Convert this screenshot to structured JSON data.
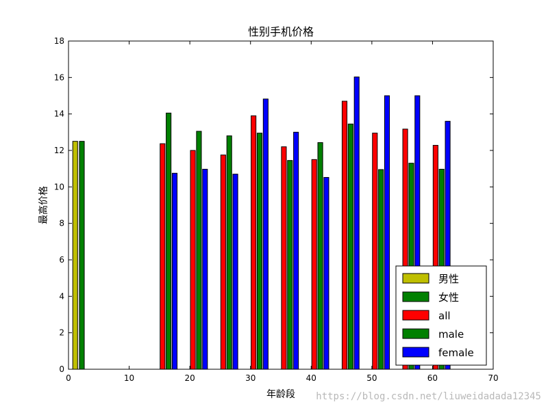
{
  "chart_data": {
    "type": "bar",
    "title": "性别手机价格",
    "xlabel": "年龄段",
    "ylabel": "最高价格",
    "xlim": [
      0,
      70
    ],
    "ylim": [
      0,
      18
    ],
    "xticks": [
      0,
      10,
      20,
      30,
      40,
      50,
      60,
      70
    ],
    "yticks": [
      0,
      2,
      4,
      6,
      8,
      10,
      12,
      14,
      16,
      18
    ],
    "grid": false,
    "legend_position": "lower-right",
    "bar_width": 0.8,
    "series": [
      {
        "name": "男性",
        "color": "#bfbf00",
        "points": [
          {
            "x": 1.1,
            "y": 12.5
          }
        ]
      },
      {
        "name": "女性",
        "color": "#008000",
        "points": [
          {
            "x": 2.2,
            "y": 12.5
          }
        ]
      },
      {
        "name": "all",
        "color": "#ff0000",
        "points": [
          {
            "x": 15.5,
            "y": 12.37
          },
          {
            "x": 20.5,
            "y": 12.0
          },
          {
            "x": 25.5,
            "y": 11.75
          },
          {
            "x": 30.5,
            "y": 13.9
          },
          {
            "x": 35.5,
            "y": 12.2
          },
          {
            "x": 40.5,
            "y": 11.5
          },
          {
            "x": 45.5,
            "y": 14.7
          },
          {
            "x": 50.5,
            "y": 12.95
          },
          {
            "x": 55.5,
            "y": 13.17
          },
          {
            "x": 60.5,
            "y": 12.28
          }
        ]
      },
      {
        "name": "male",
        "color": "#008000",
        "points": [
          {
            "x": 16.5,
            "y": 14.05
          },
          {
            "x": 21.5,
            "y": 13.05
          },
          {
            "x": 26.5,
            "y": 12.8
          },
          {
            "x": 31.5,
            "y": 12.95
          },
          {
            "x": 36.5,
            "y": 11.45
          },
          {
            "x": 41.5,
            "y": 12.43
          },
          {
            "x": 46.5,
            "y": 13.45
          },
          {
            "x": 51.5,
            "y": 10.95
          },
          {
            "x": 56.5,
            "y": 11.3
          },
          {
            "x": 61.5,
            "y": 10.97
          }
        ]
      },
      {
        "name": "female",
        "color": "#0000ff",
        "points": [
          {
            "x": 17.5,
            "y": 10.75
          },
          {
            "x": 22.5,
            "y": 10.97
          },
          {
            "x": 27.5,
            "y": 10.7
          },
          {
            "x": 32.5,
            "y": 14.82
          },
          {
            "x": 37.5,
            "y": 13.0
          },
          {
            "x": 42.5,
            "y": 10.52
          },
          {
            "x": 47.5,
            "y": 16.03
          },
          {
            "x": 52.5,
            "y": 15.0
          },
          {
            "x": 57.5,
            "y": 15.0
          },
          {
            "x": 62.5,
            "y": 13.6
          }
        ]
      }
    ]
  },
  "watermark": "https://blog.csdn.net/liuweidadada12345"
}
